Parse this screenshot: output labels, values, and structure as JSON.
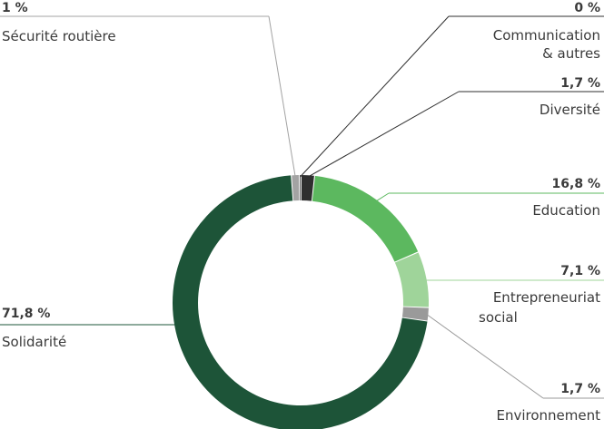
{
  "chart_data": {
    "type": "pie",
    "donut": true,
    "categories": [
      "Sécurité routière",
      "Communication & autres",
      "Diversité",
      "Education",
      "Entrepreneuriat social",
      "Environnement",
      "Solidarité"
    ],
    "values": [
      1,
      0,
      1.7,
      16.8,
      7.1,
      1.7,
      71.8
    ],
    "value_labels": [
      "1 %",
      "0 %",
      "1,7 %",
      "16,8 %",
      "7,1 %",
      "1,7 %",
      "71,8 %"
    ],
    "label_lines": [
      [
        "Sécurité routière"
      ],
      [
        "Communication",
        "& autres"
      ],
      [
        "Diversité"
      ],
      [
        "Education"
      ],
      [
        "Entrepreneuriat",
        "social"
      ],
      [
        "Environnement"
      ],
      [
        "Solidarité"
      ]
    ],
    "colors": [
      "#a3a3a3",
      "#2f2f2f",
      "#2f2f2f",
      "#5cb85f",
      "#9fd49a",
      "#9a9a9a",
      "#1d5438"
    ],
    "title": "",
    "legend": "none"
  }
}
